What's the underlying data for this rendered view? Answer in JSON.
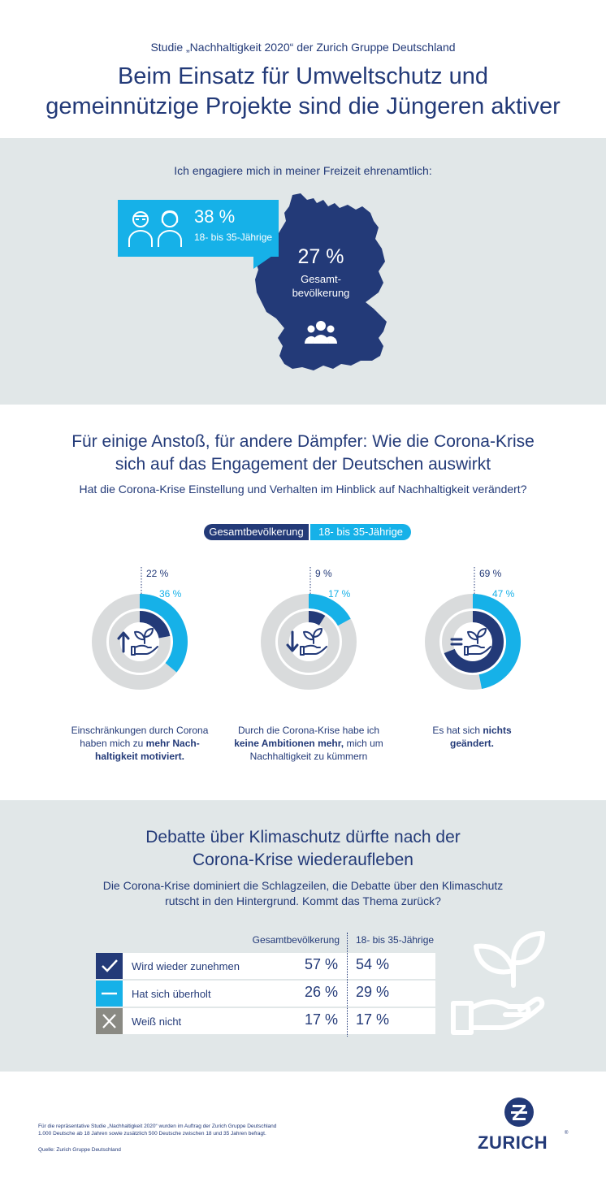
{
  "header": {
    "subtitle": "Studie „Nachhaltigkeit 2020“ der Zurich Gruppe Deutschland",
    "title_line1": "Beim Einsatz für Umweltschutz und",
    "title_line2": "gemeinnützige Projekte sind die Jüngeren aktiver"
  },
  "section1": {
    "question": "Ich engagiere mich in meiner Freizeit ehrenamtlich:",
    "young_pct": "38 %",
    "young_label": "18- bis 35-Jährige",
    "total_pct": "27 %",
    "total_label_line1": "Gesamt-",
    "total_label_line2": "bevölkerung"
  },
  "section2": {
    "title_line1": "Für einige Anstoß, für andere Dämpfer: Wie die Corona-Krise",
    "title_line2": "sich auf das Engagement der Deutschen auswirkt",
    "question": "Hat die Corona-Krise Einstellung und Verhalten im Hinblick auf Nachhaltigkeit verändert?",
    "legend_total": "Gesamtbevölkerung",
    "legend_young": "18- bis 35-Jährige",
    "colors": {
      "total": "#233a78",
      "young": "#16b1e8",
      "track": "#d9dbdc"
    }
  },
  "chart_data": {
    "type": "donut",
    "series": [
      {
        "name": "Gesamtbevölkerung",
        "values": [
          22,
          9,
          69
        ]
      },
      {
        "name": "18- bis 35-Jährige",
        "values": [
          36,
          17,
          47
        ]
      }
    ],
    "items": [
      {
        "total_label": "22 %",
        "young_label": "36 %",
        "arrow": "up",
        "caption": [
          [
            {
              "t": "Einschränkungen durch Corona"
            }
          ],
          [
            {
              "t": "haben mich zu "
            },
            {
              "t": "mehr Nach-",
              "b": true
            }
          ],
          [
            {
              "t": "haltigkeit motiviert.",
              "b": true
            }
          ]
        ]
      },
      {
        "total_label": "9 %",
        "young_label": "17 %",
        "arrow": "down",
        "caption": [
          [
            {
              "t": "Durch die Corona-Krise habe ich"
            }
          ],
          [
            {
              "t": "keine Ambitionen mehr,",
              "b": true
            },
            {
              "t": " mich um"
            }
          ],
          [
            {
              "t": "Nachhaltigkeit zu kümmern"
            }
          ]
        ]
      },
      {
        "total_label": "69 %",
        "young_label": "47 %",
        "arrow": "equal",
        "caption": [
          [
            {
              "t": "Es hat sich "
            },
            {
              "t": "nichts",
              "b": true
            }
          ],
          [
            {
              "t": "geändert.",
              "b": true
            }
          ]
        ]
      }
    ]
  },
  "section3": {
    "title_line1": "Debatte über Klimaschutz dürfte nach der",
    "title_line2": "Corona-Krise wiederaufleben",
    "question_line1": "Die Corona-Krise dominiert die Schlagzeilen, die Debatte über den Klimaschutz",
    "question_line2": "rutscht in den Hintergrund. Kommt das Thema zurück?",
    "col_total": "Gesamtbevölkerung",
    "col_young": "18- bis 35-Jährige",
    "rows": [
      {
        "icon": "check-icon",
        "color": "#233a78",
        "label": "Wird wieder zunehmen",
        "total": "57 %",
        "young": "54 %"
      },
      {
        "icon": "minus-icon",
        "color": "#16b1e8",
        "label": "Hat sich überholt",
        "total": "26 %",
        "young": "29 %"
      },
      {
        "icon": "cross-icon",
        "color": "#8a8a83",
        "label": "Weiß nicht",
        "total": "17 %",
        "young": "17 %"
      }
    ]
  },
  "footer": {
    "note_line1": "Für die repräsentative Studie „Nachhaltigkeit 2020“ wurden im Auftrag der Zurich Gruppe Deutschland",
    "note_line2": "1.000 Deutsche ab 18 Jahren sowie zusätzlich 500 Deutsche zwischen 18 und 35 Jahren befragt.",
    "source": "Quelle: Zurich Gruppe Deutschland",
    "logo_text": "ZURICH",
    "logo_reg": "®"
  }
}
